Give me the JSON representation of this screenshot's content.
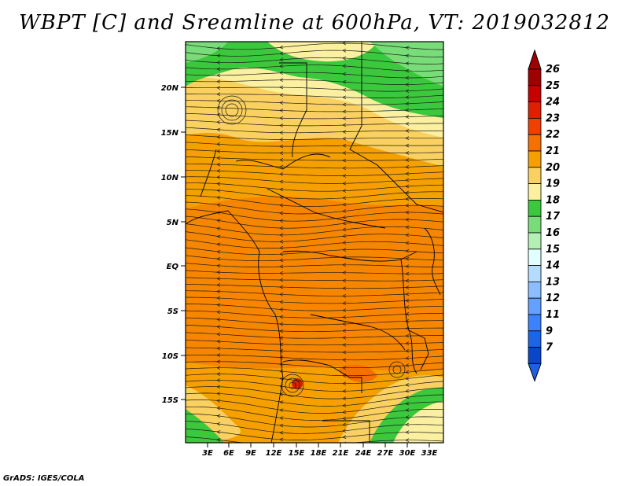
{
  "title": "WBPT [C] and Sreamline at 600hPa, VT: 2019032812",
  "credit": "GrADS: IGES/COLA",
  "map": {
    "lat_labels": [
      "20N",
      "15N",
      "10N",
      "5N",
      "EQ",
      "5S",
      "10S",
      "15S"
    ],
    "lon_labels": [
      "3E",
      "6E",
      "9E",
      "12E",
      "15E",
      "18E",
      "21E",
      "24E",
      "27E",
      "30E",
      "33E"
    ]
  },
  "colorbar": {
    "labels": [
      "26",
      "25",
      "24",
      "23",
      "22",
      "21",
      "20",
      "19",
      "18",
      "17",
      "16",
      "15",
      "14",
      "13",
      "12",
      "11",
      "9",
      "7"
    ],
    "colors": [
      "#a00000",
      "#c80000",
      "#e01e00",
      "#f04000",
      "#f57000",
      "#f5a000",
      "#fad060",
      "#fbf0a0",
      "#3cc83c",
      "#78dc78",
      "#b4f0b4",
      "#e1ffff",
      "#b4dcff",
      "#8cbeff",
      "#64a0ff",
      "#3c82ff",
      "#1e64e6",
      "#0a46c8"
    ],
    "top_arrow_color": "#a00000",
    "bottom_arrow_color": "#2060e0"
  }
}
